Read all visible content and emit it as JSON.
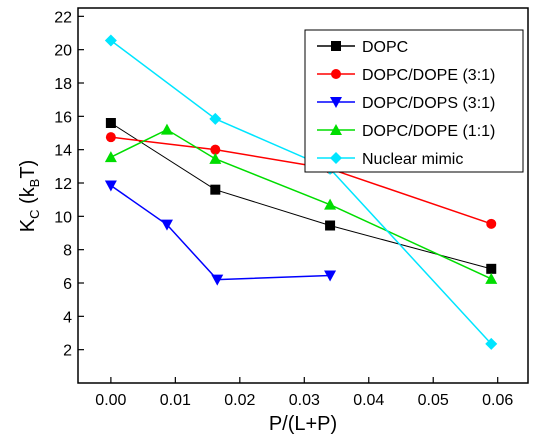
{
  "chart_data": {
    "type": "line",
    "xlabel": "P/(L+P)",
    "ylabel": [
      "K",
      "C",
      " (k",
      "B",
      "T)"
    ],
    "xlim": [
      -0.0051,
      0.0647
    ],
    "ylim": [
      0,
      22.5
    ],
    "xticks": [
      {
        "value": 0,
        "label": "0.00"
      },
      {
        "value": 0.01,
        "label": "0.01"
      },
      {
        "value": 0.02,
        "label": "0.02"
      },
      {
        "value": 0.03,
        "label": "0.03"
      },
      {
        "value": 0.04,
        "label": "0.04"
      },
      {
        "value": 0.05,
        "label": "0.05"
      },
      {
        "value": 0.06,
        "label": "0.06"
      }
    ],
    "yticks": [
      2,
      4,
      6,
      8,
      10,
      12,
      14,
      16,
      18,
      20,
      22
    ],
    "legend": "upper-right",
    "series": [
      {
        "name": "DOPC",
        "color": "#000000",
        "marker": "square",
        "x": [
          0,
          0.0162,
          0.034,
          0.059
        ],
        "values": [
          15.6,
          11.6,
          9.45,
          6.85
        ]
      },
      {
        "name": "DOPC/DOPE (3:1)",
        "color": "#ff0000",
        "marker": "circle",
        "x": [
          0,
          0.0162,
          0.034,
          0.059
        ],
        "values": [
          14.75,
          14.0,
          12.85,
          9.55
        ]
      },
      {
        "name": "DOPC/DOPS (3:1)",
        "color": "#0000ff",
        "marker": "triangle-down",
        "x": [
          0,
          0.0087,
          0.0165,
          0.034
        ],
        "values": [
          11.85,
          9.5,
          6.2,
          6.45
        ]
      },
      {
        "name": "DOPC/DOPE (1:1)",
        "color": "#00dd00",
        "marker": "triangle-up",
        "x": [
          0,
          0.0087,
          0.0162,
          0.034,
          0.059
        ],
        "values": [
          13.55,
          15.2,
          13.45,
          10.7,
          6.25
        ]
      },
      {
        "name": "Nuclear mimic",
        "color": "#00e5ff",
        "marker": "diamond",
        "x": [
          0,
          0.0162,
          0.034,
          0.059
        ],
        "values": [
          20.55,
          15.85,
          12.85,
          2.35
        ]
      }
    ]
  }
}
